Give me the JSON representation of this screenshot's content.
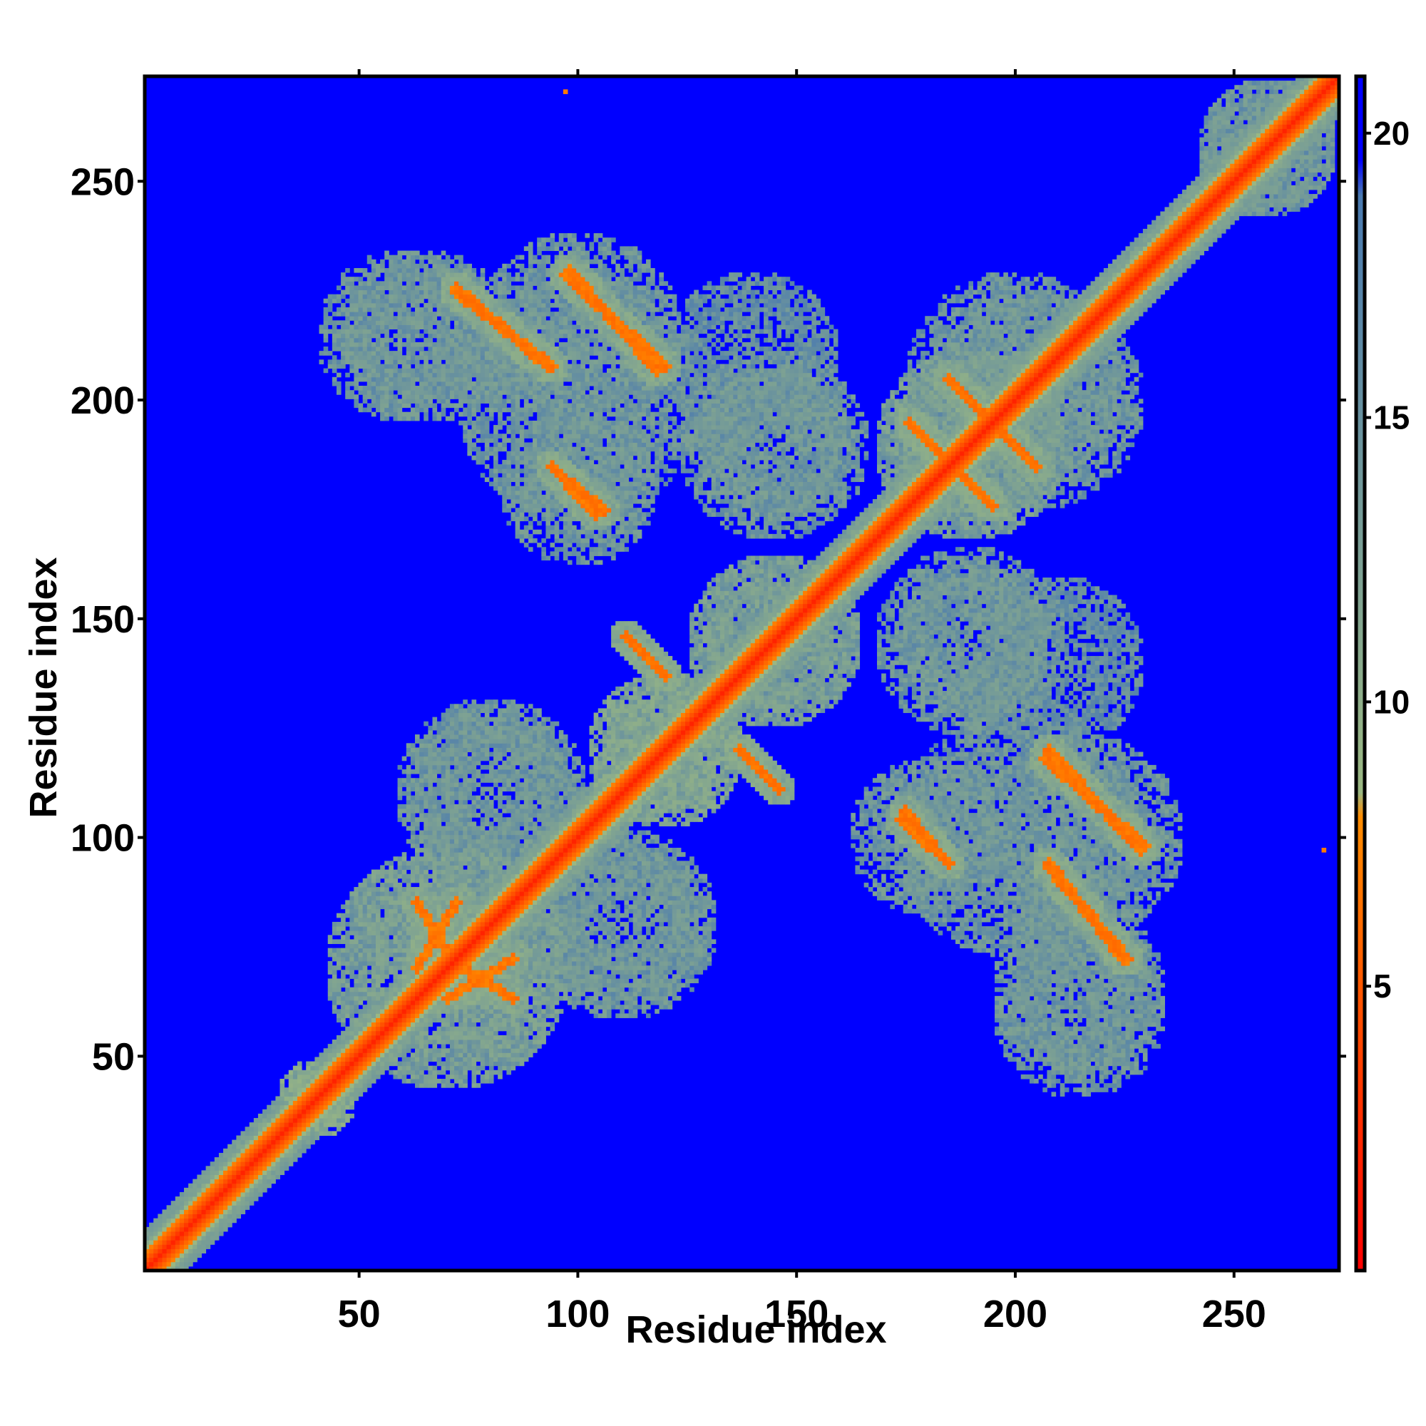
{
  "chart_data": {
    "type": "heatmap",
    "title": "",
    "xlabel": "Residue index",
    "ylabel": "Residue index",
    "xlim": [
      1,
      274
    ],
    "ylim": [
      1,
      274
    ],
    "x_ticks": [
      50,
      100,
      150,
      200,
      250
    ],
    "y_ticks": [
      50,
      100,
      150,
      200,
      250
    ],
    "colorbar": {
      "ticks": [
        5,
        10,
        15,
        20
      ],
      "range": [
        0,
        21
      ],
      "colors": [
        "#ff0000",
        "#ff8c00",
        "#9bb882",
        "#4a7ab0",
        "#0000ff"
      ],
      "stops": [
        0,
        0.38,
        0.4,
        0.9,
        0.93
      ]
    },
    "description_of_values": "Pairwise residue distance map; low values (red) near the diagonal, high values (blue) elsewhere",
    "features": {
      "diagonal": {
        "from": 1,
        "to": 274,
        "value": 2
      },
      "blobs": [
        {
          "x": 40,
          "y": 40,
          "r": 9,
          "value": 9
        },
        {
          "x": 70,
          "y": 70,
          "r": 28,
          "value": 11
        },
        {
          "x": 120,
          "y": 120,
          "r": 18,
          "value": 10
        },
        {
          "x": 145,
          "y": 145,
          "r": 20,
          "value": 11
        },
        {
          "x": 190,
          "y": 190,
          "r": 22,
          "value": 11
        },
        {
          "x": 258,
          "y": 258,
          "r": 16,
          "value": 12
        },
        {
          "x": 100,
          "y": 215,
          "r": 24,
          "value": 12
        },
        {
          "x": 60,
          "y": 215,
          "r": 20,
          "value": 12
        },
        {
          "x": 140,
          "y": 210,
          "r": 20,
          "value": 13
        },
        {
          "x": 100,
          "y": 180,
          "r": 18,
          "value": 12
        },
        {
          "x": 205,
          "y": 200,
          "r": 25,
          "value": 12
        },
        {
          "x": 200,
          "y": 100,
          "r": 28,
          "value": 12
        },
        {
          "x": 215,
          "y": 65,
          "r": 20,
          "value": 12
        },
        {
          "x": 110,
          "y": 80,
          "r": 22,
          "value": 12
        },
        {
          "x": 80,
          "y": 110,
          "r": 20,
          "value": 12
        },
        {
          "x": 190,
          "y": 145,
          "r": 22,
          "value": 12
        },
        {
          "x": 145,
          "y": 190,
          "r": 18,
          "value": 12
        }
      ],
      "strands": [
        {
          "x1": 72,
          "y1": 225,
          "x2": 94,
          "y2": 208,
          "value": 6
        },
        {
          "x1": 98,
          "y1": 230,
          "x2": 118,
          "y2": 207,
          "value": 6
        },
        {
          "x1": 94,
          "y1": 185,
          "x2": 104,
          "y2": 174,
          "value": 6
        },
        {
          "x1": 175,
          "y1": 106,
          "x2": 183,
          "y2": 96,
          "value": 6
        },
        {
          "x1": 208,
          "y1": 120,
          "x2": 229,
          "y2": 97,
          "value": 6
        },
        {
          "x1": 208,
          "y1": 93,
          "x2": 226,
          "y2": 72,
          "value": 6
        },
        {
          "x1": 111,
          "y1": 146,
          "x2": 120,
          "y2": 137,
          "value": 6
        },
        {
          "x1": 137,
          "y1": 120,
          "x2": 146,
          "y2": 111,
          "value": 6
        },
        {
          "x1": 176,
          "y1": 195,
          "x2": 195,
          "y2": 176,
          "value": 6
        },
        {
          "x1": 185,
          "y1": 205,
          "x2": 205,
          "y2": 185,
          "value": 6
        },
        {
          "x1": 63,
          "y1": 85,
          "x2": 72,
          "y2": 70,
          "value": 6
        },
        {
          "x1": 70,
          "y1": 63,
          "x2": 85,
          "y2": 72,
          "value": 6
        }
      ],
      "speckles": [
        {
          "x": 97,
          "y": 271,
          "value": 7
        },
        {
          "x": 271,
          "y": 97,
          "value": 7
        }
      ]
    }
  }
}
